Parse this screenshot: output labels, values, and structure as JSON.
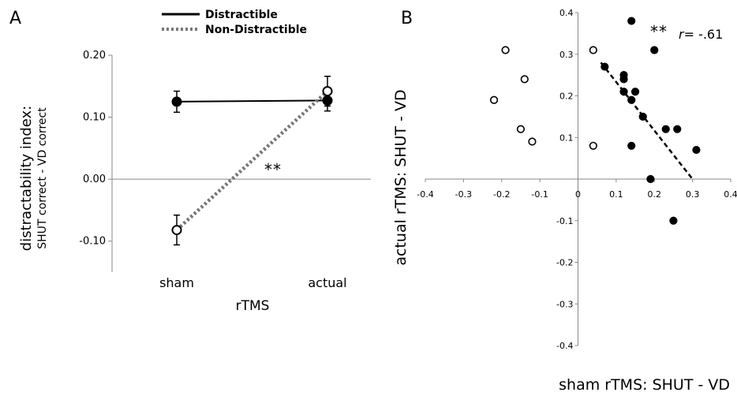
{
  "chart_data": [
    {
      "panel": "A",
      "type": "line",
      "categories": [
        "sham",
        "actual"
      ],
      "xlabel": "rTMS",
      "ylabel": "distractability index:",
      "ylabel_sub": "SHUT correct - VD correct",
      "ylim": [
        -0.15,
        0.2
      ],
      "yticks": [
        "0.20",
        "0.10",
        "0.00",
        "-0.10"
      ],
      "ytick_values": [
        0.2,
        0.1,
        0.0,
        -0.1
      ],
      "series": [
        {
          "name": "Distractible",
          "values": [
            0.125,
            0.127
          ],
          "errors": [
            0.017,
            0.017
          ],
          "style": "solid",
          "marker": "filled"
        },
        {
          "name": "Non-Distractible",
          "values": [
            -0.082,
            0.142
          ],
          "errors": [
            0.024,
            0.024
          ],
          "style": "dotted",
          "marker": "open"
        }
      ],
      "annotation": "**",
      "legend": "top-center"
    },
    {
      "panel": "B",
      "type": "scatter",
      "xlabel": "sham rTMS: SHUT - VD",
      "ylabel": "actual rTMS: SHUT - VD",
      "xlim": [
        -0.4,
        0.4
      ],
      "ylim": [
        -0.4,
        0.4
      ],
      "xticks": [
        "-0.4",
        "-0.3",
        "-0.2",
        "-0.1",
        "0",
        "0.1",
        "0.2",
        "0.3",
        "0.4"
      ],
      "xtick_values": [
        -0.4,
        -0.3,
        -0.2,
        -0.1,
        0,
        0.1,
        0.2,
        0.3,
        0.4
      ],
      "yticks": [
        "0.4",
        "0.3",
        "0.2",
        "0.1",
        "-0.1",
        "-0.2",
        "-0.3",
        "-0.4"
      ],
      "ytick_values": [
        0.4,
        0.3,
        0.2,
        0.1,
        -0.1,
        -0.2,
        -0.3,
        -0.4
      ],
      "series": [
        {
          "name": "Distractible",
          "marker": "filled",
          "points": [
            [
              0.07,
              0.27
            ],
            [
              0.12,
              0.25
            ],
            [
              0.12,
              0.24
            ],
            [
              0.12,
              0.21
            ],
            [
              0.14,
              0.38
            ],
            [
              0.15,
              0.21
            ],
            [
              0.14,
              0.19
            ],
            [
              0.2,
              0.31
            ],
            [
              0.17,
              0.15
            ],
            [
              0.23,
              0.12
            ],
            [
              0.26,
              0.12
            ],
            [
              0.14,
              0.08
            ],
            [
              0.19,
              0.0
            ],
            [
              0.31,
              0.07
            ],
            [
              0.25,
              -0.1
            ]
          ]
        },
        {
          "name": "Non-Distractible",
          "marker": "open",
          "points": [
            [
              -0.19,
              0.31
            ],
            [
              0.04,
              0.31
            ],
            [
              -0.14,
              0.24
            ],
            [
              -0.22,
              0.19
            ],
            [
              -0.15,
              0.12
            ],
            [
              -0.12,
              0.09
            ],
            [
              0.04,
              0.08
            ]
          ]
        }
      ],
      "fit_line": {
        "style": "dashed",
        "from": [
          0.06,
          0.28
        ],
        "to": [
          0.3,
          0.0
        ]
      },
      "annotation_stars": "**",
      "annotation_r": "r= -.61"
    }
  ],
  "panels": {
    "a_letter": "A",
    "b_letter": "B"
  },
  "legend": {
    "distractible": "Distractible",
    "non_distractible": "Non-Distractible"
  },
  "colors": {
    "solid": "#000000",
    "dotted": "#777777",
    "axis": "#888888"
  }
}
